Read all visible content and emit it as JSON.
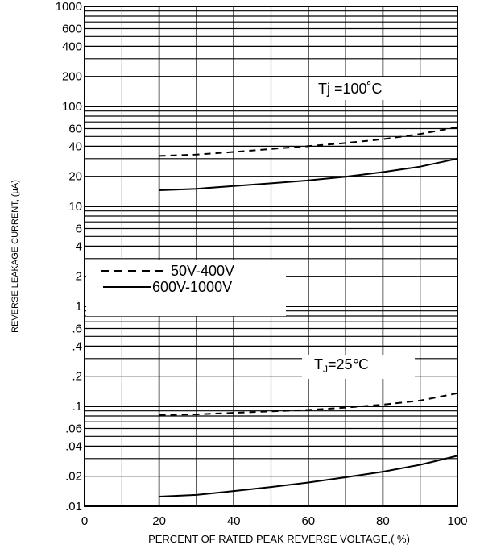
{
  "chart_data": {
    "type": "line",
    "xlabel": "PERCENT OF RATED PEAK REVERSE VOLTAGE,( %)",
    "ylabel": "REVERSE LEAKAGE CURRENT, (μA)",
    "xlim": [
      0,
      100
    ],
    "ylim": [
      0.01,
      1000
    ],
    "yscale": "log",
    "grid": true,
    "x_ticks": [
      "0",
      "20",
      "40",
      "60",
      "80",
      "100"
    ],
    "y_ticks": [
      {
        "value": 1000,
        "label": "1000"
      },
      {
        "value": 600,
        "label": "600"
      },
      {
        "value": 400,
        "label": "400"
      },
      {
        "value": 200,
        "label": "200"
      },
      {
        "value": 100,
        "label": "100"
      },
      {
        "value": 60,
        "label": "60"
      },
      {
        "value": 40,
        "label": "40"
      },
      {
        "value": 20,
        "label": "20"
      },
      {
        "value": 10,
        "label": "10"
      },
      {
        "value": 6,
        "label": "6"
      },
      {
        "value": 4,
        "label": "4"
      },
      {
        "value": 2,
        "label": "2"
      },
      {
        "value": 1,
        "label": "1"
      },
      {
        "value": 0.6,
        "label": ".6"
      },
      {
        "value": 0.4,
        "label": ".4"
      },
      {
        "value": 0.2,
        "label": ".2"
      },
      {
        "value": 0.1,
        "label": ".1"
      },
      {
        "value": 0.06,
        "label": ".06"
      },
      {
        "value": 0.04,
        "label": ".04"
      },
      {
        "value": 0.02,
        "label": ".02"
      },
      {
        "value": 0.01,
        "label": ".01"
      }
    ],
    "legend": {
      "placement": "left",
      "entries": [
        {
          "name": "50V-400V",
          "style": "dashed"
        },
        {
          "name": "600V-1000V",
          "style": "solid"
        }
      ]
    },
    "annotations": [
      {
        "text": "Tj =100˚C",
        "x": 80,
        "y": 150
      },
      {
        "text": "T",
        "sub": "J",
        "after": "=25℃",
        "x": 80,
        "y": 0.29
      }
    ],
    "series": [
      {
        "name": "50V-400V",
        "group": "Tj =100˚C",
        "style": "dashed",
        "x": [
          20,
          30,
          40,
          50,
          60,
          70,
          80,
          90,
          100
        ],
        "y": [
          32,
          33,
          35,
          37.5,
          40,
          43,
          47,
          53,
          62
        ]
      },
      {
        "name": "600V-1000V",
        "group": "Tj =100˚C",
        "style": "solid",
        "x": [
          20,
          30,
          40,
          50,
          60,
          70,
          80,
          90,
          100
        ],
        "y": [
          14.5,
          15,
          16,
          17,
          18.2,
          19.8,
          22,
          25,
          30
        ]
      },
      {
        "name": "50V-400V",
        "group": "TJ=25℃",
        "style": "dashed",
        "x": [
          20,
          30,
          40,
          50,
          60,
          70,
          80,
          90,
          100
        ],
        "y": [
          0.082,
          0.083,
          0.086,
          0.089,
          0.092,
          0.097,
          0.104,
          0.114,
          0.135
        ]
      },
      {
        "name": "600V-1000V",
        "group": "TJ=25℃",
        "style": "solid",
        "x": [
          20,
          30,
          40,
          50,
          60,
          70,
          80,
          90,
          100
        ],
        "y": [
          0.0125,
          0.013,
          0.0142,
          0.0156,
          0.0173,
          0.0195,
          0.0222,
          0.026,
          0.032
        ]
      }
    ]
  }
}
